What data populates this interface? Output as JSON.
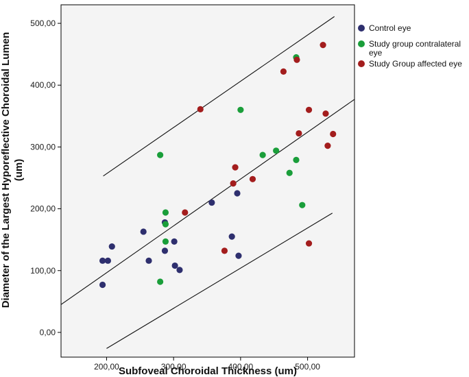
{
  "chart_data": {
    "type": "scatter",
    "xlabel": "Subfoveal Choroidal Thickness (um)",
    "ylabel": "Diameter of the Largest Hyporeflective Choroidal Lumen",
    "ylabel_unit": "(um)",
    "xlim": [
      132,
      570
    ],
    "ylim": [
      -40,
      530
    ],
    "x_ticks": [
      200,
      300,
      400,
      500
    ],
    "x_tick_labels": [
      "200,00",
      "300,00",
      "400,00",
      "500,00"
    ],
    "y_ticks": [
      0,
      100,
      200,
      300,
      400,
      500
    ],
    "y_tick_labels": [
      "0,00",
      "100,00",
      "200,00",
      "300,00",
      "400,00",
      "500,00"
    ],
    "grid": false,
    "legend_position": "right",
    "background": "#f4f4f4",
    "series": [
      {
        "name": "Control eye",
        "color": "#2e2f6e",
        "points": [
          [
            194,
            116
          ],
          [
            194,
            77
          ],
          [
            202,
            116
          ],
          [
            208,
            139
          ],
          [
            255,
            163
          ],
          [
            263,
            116
          ],
          [
            287,
            178
          ],
          [
            287,
            132
          ],
          [
            301,
            147
          ],
          [
            302,
            108
          ],
          [
            309,
            101
          ],
          [
            357,
            210
          ],
          [
            387,
            155
          ],
          [
            395,
            225
          ],
          [
            397,
            124
          ]
        ]
      },
      {
        "name": "Study group contralateral eye",
        "color": "#1a9e3a",
        "points": [
          [
            280,
            287
          ],
          [
            280,
            82
          ],
          [
            288,
            194
          ],
          [
            288,
            175
          ],
          [
            288,
            147
          ],
          [
            400,
            360
          ],
          [
            433,
            287
          ],
          [
            453,
            294
          ],
          [
            473,
            258
          ],
          [
            483,
            279
          ],
          [
            483,
            445
          ],
          [
            492,
            206
          ]
        ]
      },
      {
        "name": "Study Group affected eye",
        "color": "#a31d1d",
        "points": [
          [
            340,
            361
          ],
          [
            317,
            194
          ],
          [
            376,
            132
          ],
          [
            389,
            241
          ],
          [
            392,
            267
          ],
          [
            418,
            248
          ],
          [
            464,
            422
          ],
          [
            484,
            441
          ],
          [
            487,
            322
          ],
          [
            502,
            360
          ],
          [
            502,
            144
          ],
          [
            523,
            465
          ],
          [
            527,
            354
          ],
          [
            530,
            302
          ],
          [
            538,
            321
          ]
        ]
      }
    ],
    "fit_lines": [
      {
        "role": "regression",
        "x": [
          132,
          570
        ],
        "y": [
          45,
          377
        ]
      },
      {
        "role": "upper-bound",
        "x": [
          195,
          540
        ],
        "y": [
          253,
          511
        ]
      },
      {
        "role": "lower-bound",
        "x": [
          200,
          537
        ],
        "y": [
          -26,
          193
        ]
      }
    ]
  }
}
